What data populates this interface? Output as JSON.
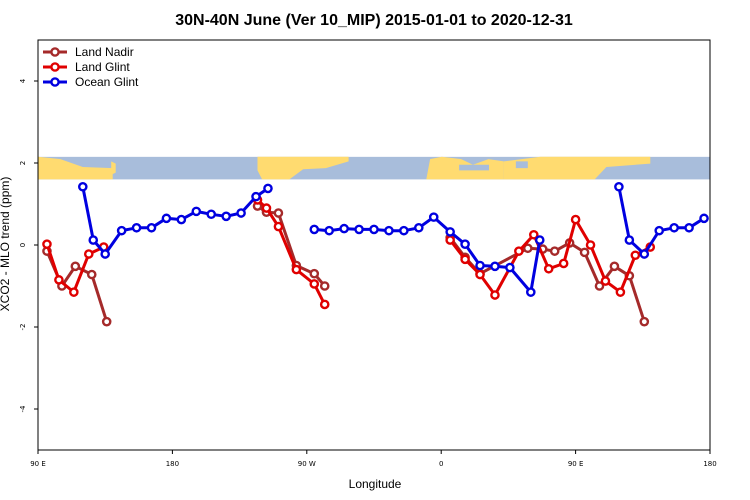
{
  "chart_data": {
    "type": "line",
    "title": "30N-40N June (Ver 10_MIP)   2015-01-01 to 2020-12-31",
    "xlabel": "Longitude",
    "ylabel": "XCO2 - MLO trend (ppm)",
    "xlim": [
      90,
      540
    ],
    "ylim": [
      -5,
      5
    ],
    "x_ticks": [
      {
        "value": 90,
        "label": "90 E"
      },
      {
        "value": 180,
        "label": "180"
      },
      {
        "value": 270,
        "label": "90 W"
      },
      {
        "value": 360,
        "label": "0"
      },
      {
        "value": 450,
        "label": "90 E"
      },
      {
        "value": 540,
        "label": "180"
      }
    ],
    "y_ticks": [
      {
        "value": -4,
        "label": "-4"
      },
      {
        "value": -2,
        "label": "-2"
      },
      {
        "value": 0,
        "label": "0"
      },
      {
        "value": 2,
        "label": "2"
      },
      {
        "value": 4,
        "label": "4"
      }
    ],
    "map_strip": {
      "y_from": 1.6,
      "y_to": 2.15,
      "ocean_color": "#a8bddb",
      "land_color": "#ffdb70"
    },
    "legend": {
      "position": "top-left"
    },
    "series": [
      {
        "name": "Land Nadir",
        "color": "#a52a2a",
        "segments": [
          [
            [
              96,
              -0.15
            ],
            [
              106,
              -1.0
            ],
            [
              115,
              -0.52
            ],
            [
              126,
              -0.72
            ],
            [
              136,
              -1.87
            ]
          ],
          [
            [
              237,
              0.95
            ],
            [
              243,
              0.8
            ],
            [
              251,
              0.78
            ],
            [
              263,
              -0.5
            ],
            [
              275,
              -0.7
            ],
            [
              282,
              -1.0
            ]
          ],
          [
            [
              366,
              0.18
            ],
            [
              376,
              -0.3
            ],
            [
              386,
              -0.7
            ],
            [
              418,
              -0.08
            ],
            [
              428,
              -0.1
            ],
            [
              436,
              -0.15
            ],
            [
              446,
              0.05
            ],
            [
              456,
              -0.18
            ],
            [
              466,
              -1.0
            ],
            [
              476,
              -0.52
            ],
            [
              486,
              -0.75
            ],
            [
              496,
              -1.87
            ]
          ]
        ]
      },
      {
        "name": "Land Glint",
        "color": "#e00000",
        "segments": [
          [
            [
              96,
              0.02
            ],
            [
              104,
              -0.85
            ],
            [
              114,
              -1.15
            ],
            [
              124,
              -0.22
            ],
            [
              134,
              -0.05
            ]
          ],
          [
            [
              237,
              1.1
            ],
            [
              243,
              0.9
            ],
            [
              251,
              0.45
            ],
            [
              263,
              -0.6
            ],
            [
              275,
              -0.95
            ],
            [
              282,
              -1.45
            ]
          ],
          [
            [
              366,
              0.12
            ],
            [
              376,
              -0.35
            ],
            [
              386,
              -0.72
            ],
            [
              396,
              -1.22
            ],
            [
              412,
              -0.15
            ],
            [
              422,
              0.25
            ],
            [
              432,
              -0.58
            ],
            [
              442,
              -0.45
            ],
            [
              450,
              0.62
            ],
            [
              460,
              0.0
            ],
            [
              470,
              -0.88
            ],
            [
              480,
              -1.15
            ],
            [
              490,
              -0.25
            ],
            [
              500,
              -0.05
            ]
          ]
        ]
      },
      {
        "name": "Ocean Glint",
        "color": "#0000e0",
        "segments": [
          [
            [
              120,
              1.42
            ],
            [
              127,
              0.12
            ],
            [
              135,
              -0.22
            ],
            [
              146,
              0.35
            ],
            [
              156,
              0.42
            ],
            [
              166,
              0.42
            ],
            [
              176,
              0.65
            ],
            [
              186,
              0.62
            ],
            [
              196,
              0.82
            ],
            [
              206,
              0.75
            ],
            [
              216,
              0.7
            ],
            [
              226,
              0.78
            ],
            [
              236,
              1.18
            ],
            [
              244,
              1.38
            ]
          ],
          [
            [
              275,
              0.38
            ],
            [
              285,
              0.35
            ],
            [
              295,
              0.4
            ],
            [
              305,
              0.38
            ],
            [
              315,
              0.38
            ],
            [
              325,
              0.35
            ],
            [
              335,
              0.35
            ],
            [
              345,
              0.42
            ],
            [
              355,
              0.68
            ],
            [
              366,
              0.32
            ],
            [
              376,
              0.02
            ],
            [
              386,
              -0.5
            ],
            [
              396,
              -0.52
            ],
            [
              406,
              -0.55
            ],
            [
              420,
              -1.15
            ],
            [
              426,
              0.12
            ]
          ],
          [
            [
              479,
              1.42
            ],
            [
              486,
              0.12
            ],
            [
              496,
              -0.22
            ],
            [
              506,
              0.35
            ],
            [
              516,
              0.42
            ],
            [
              526,
              0.42
            ],
            [
              536,
              0.65
            ]
          ]
        ]
      }
    ]
  }
}
